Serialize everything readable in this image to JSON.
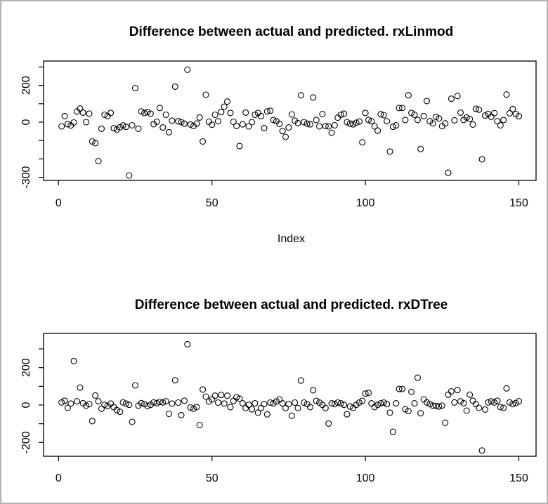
{
  "window": {
    "background": "#ffffff",
    "border_color": "#b4b4b4",
    "foreground": "#000000"
  },
  "chart_data": [
    {
      "type": "scatter",
      "title": "Difference between actual and predicted. rxLinmod",
      "xlabel": "Index",
      "ylabel": "",
      "marker": "open-circle",
      "marker_color": "#000000",
      "grid": false,
      "legend": null,
      "xlim": [
        -6,
        157
      ],
      "ylim": [
        -317,
        332
      ],
      "x_ticks": [
        0,
        50,
        100,
        150
      ],
      "y_ticks": [
        300,
        200,
        100,
        0,
        -100,
        -200,
        -300
      ],
      "y_labeled_ticks": [
        200,
        0,
        -300
      ],
      "x_rule": "index 1..150",
      "y": [
        -23,
        33,
        -11,
        -18,
        -2,
        58,
        74,
        52,
        0,
        46,
        -105,
        -114,
        -212,
        -36,
        40,
        33,
        50,
        -33,
        -40,
        -28,
        -18,
        -25,
        -290,
        -17,
        185,
        -36,
        58,
        50,
        55,
        46,
        -11,
        2,
        77,
        -29,
        40,
        -55,
        8,
        193,
        5,
        0,
        -8,
        285,
        -13,
        -21,
        -8,
        25,
        -105,
        149,
        2,
        -14,
        40,
        5,
        55,
        84,
        112,
        50,
        2,
        -21,
        -130,
        -12,
        52,
        -23,
        0,
        40,
        50,
        33,
        -33,
        58,
        62,
        12,
        5,
        -9,
        -48,
        -80,
        -29,
        42,
        8,
        -5,
        146,
        0,
        -8,
        -12,
        134,
        12,
        -23,
        44,
        -21,
        -23,
        -58,
        -17,
        24,
        40,
        46,
        0,
        -8,
        -12,
        -3,
        3,
        -110,
        50,
        12,
        5,
        -23,
        -46,
        43,
        38,
        5,
        -160,
        -25,
        -17,
        77,
        77,
        12,
        146,
        50,
        40,
        12,
        -146,
        33,
        115,
        5,
        -7,
        29,
        20,
        -22,
        -7,
        -275,
        127,
        10,
        142,
        52,
        12,
        25,
        17,
        -13,
        72,
        68,
        -202,
        36,
        45,
        29,
        49,
        5,
        -17,
        12,
        150,
        48,
        71,
        44,
        32
      ]
    },
    {
      "type": "scatter",
      "title": "Difference between actual and predicted. rxDTree",
      "xlabel": "",
      "ylabel": "",
      "marker": "open-circle",
      "marker_color": "#000000",
      "grid": false,
      "legend": null,
      "xlim": [
        -6,
        157
      ],
      "ylim": [
        -274,
        383
      ],
      "x_ticks": [
        0,
        50,
        100,
        150
      ],
      "y_ticks": [
        300,
        200,
        100,
        0,
        -100,
        -200
      ],
      "y_labeled_ticks": [
        200,
        0,
        -200
      ],
      "x_rule": "index 1..150",
      "y": [
        14,
        23,
        -15,
        8,
        235,
        20,
        93,
        10,
        -3,
        5,
        -86,
        51,
        20,
        -20,
        1,
        -5,
        8,
        -11,
        -27,
        -36,
        14,
        8,
        1,
        -90,
        105,
        -3,
        10,
        5,
        -5,
        1,
        14,
        10,
        17,
        14,
        20,
        -47,
        8,
        132,
        13,
        -54,
        23,
        325,
        -13,
        -19,
        -11,
        -107,
        83,
        45,
        19,
        30,
        50,
        13,
        54,
        8,
        50,
        -11,
        22,
        41,
        34,
        9,
        -16,
        1,
        -23,
        9,
        -41,
        -16,
        5,
        -50,
        13,
        9,
        19,
        30,
        9,
        -16,
        5,
        -57,
        13,
        -16,
        131,
        13,
        5,
        -11,
        79,
        22,
        13,
        1,
        -16,
        -99,
        9,
        5,
        13,
        9,
        1,
        -49,
        -8,
        -15,
        1,
        13,
        22,
        61,
        65,
        9,
        -11,
        1,
        9,
        13,
        5,
        -41,
        -143,
        9,
        86,
        86,
        -23,
        -32,
        70,
        9,
        146,
        -44,
        30,
        14,
        5,
        -3,
        -5,
        -8,
        -3,
        -95,
        55,
        73,
        14,
        80,
        20,
        10,
        -30,
        55,
        23,
        5,
        -15,
        -243,
        -24,
        14,
        20,
        14,
        23,
        -11,
        -15,
        89,
        14,
        5,
        10,
        20
      ]
    }
  ]
}
